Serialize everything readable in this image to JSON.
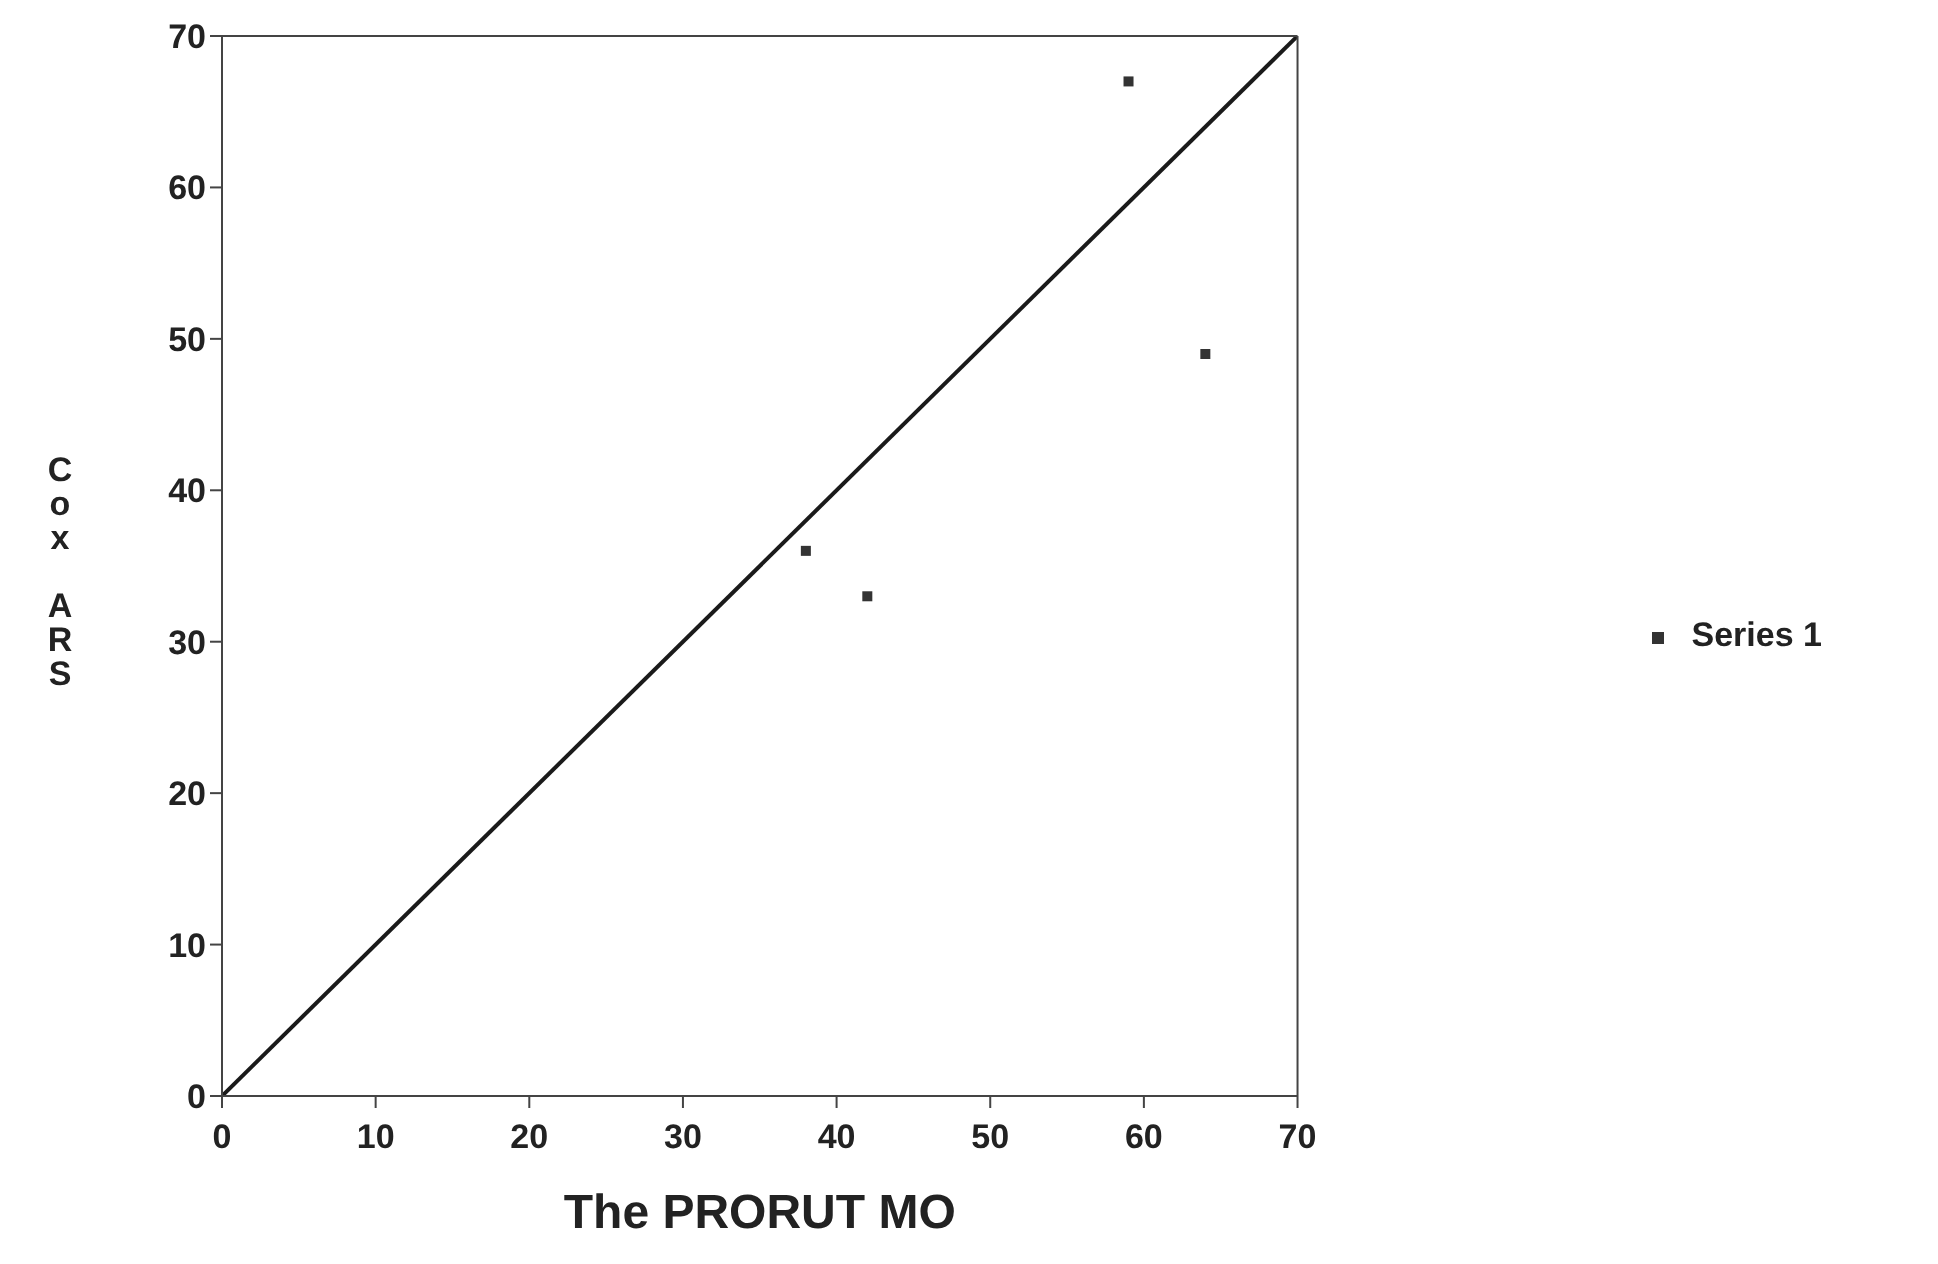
{
  "chart_data": {
    "type": "scatter",
    "xlabel": "The PRORUT MO",
    "ylabel": "Cox ARS",
    "xlim": [
      0,
      70
    ],
    "ylim": [
      0,
      70
    ],
    "xticks": [
      0,
      10,
      20,
      30,
      40,
      50,
      60,
      70
    ],
    "yticks": [
      0,
      10,
      20,
      30,
      40,
      50,
      60,
      70
    ],
    "grid": false,
    "legend": "right",
    "marker": "square",
    "series": [
      {
        "name": "Series 1",
        "color": "#333333",
        "x": [
          59,
          64,
          38,
          42
        ],
        "values": [
          67,
          49,
          36,
          33
        ]
      },
      {
        "type": "line",
        "color": "#1a1a1a",
        "x": [
          0,
          70
        ],
        "values": [
          0,
          70
        ],
        "marker": "none",
        "line_style": "solid"
      }
    ]
  }
}
